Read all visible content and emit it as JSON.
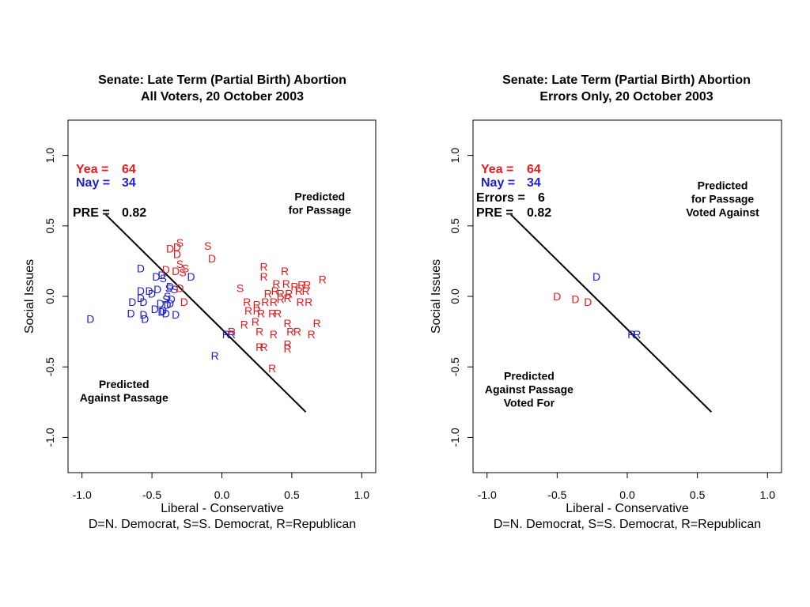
{
  "chart_data": [
    {
      "type": "scatter",
      "title": "Senate: Late Term (Partial Birth) Abortion",
      "subtitle": "All Voters, 20 October 2003",
      "xlabel": "Liberal - Conservative",
      "xlabel2": "D=N. Democrat, S=S. Democrat, R=Republican",
      "ylabel": "Social Issues",
      "xlim": [
        -1.1,
        1.1
      ],
      "ylim": [
        -1.25,
        1.25
      ],
      "xticks": [
        -1.0,
        -0.5,
        0.0,
        0.5,
        1.0
      ],
      "xtick_labels": [
        "-1.0",
        "-0.5",
        "0.0",
        "0.5",
        "1.0"
      ],
      "yticks": [
        -1.0,
        -0.5,
        0.0,
        0.5,
        1.0
      ],
      "ytick_labels": [
        "-1.0",
        "-0.5",
        "0.0",
        "0.5",
        "1.0"
      ],
      "legend": [
        {
          "label": "Yea =",
          "value": "64",
          "color": "#e41a1c"
        },
        {
          "label": "Nay =",
          "value": "34",
          "color": "#1f1fcf"
        },
        {
          "label": "PRE =",
          "value": "0.82",
          "color": "#000000"
        }
      ],
      "annotations": [
        {
          "lines": [
            "Predicted",
            "for Passage"
          ],
          "x": 0.7,
          "y": 0.68
        },
        {
          "lines": [
            "Predicted",
            "Against Passage"
          ],
          "x": -0.7,
          "y": -0.65
        }
      ],
      "cutting_line": [
        [
          -0.83,
          0.58
        ],
        [
          0.6,
          -0.82
        ]
      ],
      "points": [
        {
          "t": "D",
          "x": -0.94,
          "y": -0.16,
          "c": "#1f1fcf"
        },
        {
          "t": "D",
          "x": -0.58,
          "y": 0.2,
          "c": "#1f1fcf"
        },
        {
          "t": "D",
          "x": -0.58,
          "y": 0.04,
          "c": "#1f1fcf"
        },
        {
          "t": "D",
          "x": -0.52,
          "y": 0.04,
          "c": "#1f1fcf"
        },
        {
          "t": "D",
          "x": -0.64,
          "y": -0.04,
          "c": "#1f1fcf"
        },
        {
          "t": "D",
          "x": -0.56,
          "y": -0.04,
          "c": "#1f1fcf"
        },
        {
          "t": "D",
          "x": -0.5,
          "y": 0.02,
          "c": "#1f1fcf"
        },
        {
          "t": "D",
          "x": -0.46,
          "y": 0.05,
          "c": "#1f1fcf"
        },
        {
          "t": "D",
          "x": -0.58,
          "y": -0.01,
          "c": "#1f1fcf"
        },
        {
          "t": "D",
          "x": -0.65,
          "y": -0.12,
          "c": "#1f1fcf"
        },
        {
          "t": "D",
          "x": -0.56,
          "y": -0.13,
          "c": "#1f1fcf"
        },
        {
          "t": "D",
          "x": -0.55,
          "y": -0.16,
          "c": "#1f1fcf"
        },
        {
          "t": "D",
          "x": -0.48,
          "y": -0.09,
          "c": "#1f1fcf"
        },
        {
          "t": "D",
          "x": -0.44,
          "y": -0.05,
          "c": "#1f1fcf"
        },
        {
          "t": "D",
          "x": -0.42,
          "y": -0.1,
          "c": "#1f1fcf"
        },
        {
          "t": "D",
          "x": -0.39,
          "y": -0.06,
          "c": "#1f1fcf"
        },
        {
          "t": "D",
          "x": -0.37,
          "y": -0.05,
          "c": "#1f1fcf"
        },
        {
          "t": "D",
          "x": -0.33,
          "y": -0.13,
          "c": "#1f1fcf"
        },
        {
          "t": "D",
          "x": -0.4,
          "y": -0.12,
          "c": "#1f1fcf"
        },
        {
          "t": "D",
          "x": -0.47,
          "y": 0.14,
          "c": "#1f1fcf"
        },
        {
          "t": "D",
          "x": -0.43,
          "y": 0.15,
          "c": "#1f1fcf"
        },
        {
          "t": "D",
          "x": -0.37,
          "y": 0.07,
          "c": "#1f1fcf"
        },
        {
          "t": "D",
          "x": -0.22,
          "y": 0.14,
          "c": "#1f1fcf"
        },
        {
          "t": "D",
          "x": -0.43,
          "y": -0.11,
          "c": "#1f1fcf"
        },
        {
          "t": "D",
          "x": -0.36,
          "y": -0.02,
          "c": "#1f1fcf"
        },
        {
          "t": "S",
          "x": -0.38,
          "y": 0.06,
          "c": "#1f1fcf"
        },
        {
          "t": "S",
          "x": -0.34,
          "y": 0.05,
          "c": "#1f1fcf"
        },
        {
          "t": "S",
          "x": -0.39,
          "y": 0.0,
          "c": "#1f1fcf"
        },
        {
          "t": "S",
          "x": -0.4,
          "y": -0.02,
          "c": "#1f1fcf"
        },
        {
          "t": "S",
          "x": -0.42,
          "y": 0.13,
          "c": "#1f1fcf"
        },
        {
          "t": "R",
          "x": -0.05,
          "y": -0.42,
          "c": "#1f1fcf"
        },
        {
          "t": "R",
          "x": 0.03,
          "y": -0.27,
          "c": "#1f1fcf"
        },
        {
          "t": "R",
          "x": 0.07,
          "y": -0.27,
          "c": "#1f1fcf"
        },
        {
          "t": "D",
          "x": -0.37,
          "y": 0.34,
          "c": "#e41a1c"
        },
        {
          "t": "S",
          "x": -0.3,
          "y": 0.38,
          "c": "#e41a1c"
        },
        {
          "t": "D",
          "x": -0.32,
          "y": 0.35,
          "c": "#e41a1c"
        },
        {
          "t": "D",
          "x": -0.32,
          "y": 0.3,
          "c": "#e41a1c"
        },
        {
          "t": "S",
          "x": -0.3,
          "y": 0.23,
          "c": "#e41a1c"
        },
        {
          "t": "S",
          "x": -0.26,
          "y": 0.2,
          "c": "#e41a1c"
        },
        {
          "t": "D",
          "x": -0.4,
          "y": 0.19,
          "c": "#e41a1c"
        },
        {
          "t": "D",
          "x": -0.33,
          "y": 0.18,
          "c": "#e41a1c"
        },
        {
          "t": "S",
          "x": -0.28,
          "y": 0.17,
          "c": "#e41a1c"
        },
        {
          "t": "D",
          "x": -0.3,
          "y": 0.06,
          "c": "#e41a1c"
        },
        {
          "t": "D",
          "x": -0.27,
          "y": -0.04,
          "c": "#e41a1c"
        },
        {
          "t": "S",
          "x": -0.1,
          "y": 0.36,
          "c": "#e41a1c"
        },
        {
          "t": "D",
          "x": -0.07,
          "y": 0.27,
          "c": "#e41a1c"
        },
        {
          "t": "S",
          "x": 0.13,
          "y": 0.06,
          "c": "#e41a1c"
        },
        {
          "t": "R",
          "x": 0.3,
          "y": 0.21,
          "c": "#e41a1c"
        },
        {
          "t": "R",
          "x": 0.3,
          "y": 0.14,
          "c": "#e41a1c"
        },
        {
          "t": "R",
          "x": 0.45,
          "y": 0.18,
          "c": "#e41a1c"
        },
        {
          "t": "R",
          "x": 0.39,
          "y": 0.09,
          "c": "#e41a1c"
        },
        {
          "t": "R",
          "x": 0.46,
          "y": 0.09,
          "c": "#e41a1c"
        },
        {
          "t": "R",
          "x": 0.52,
          "y": 0.07,
          "c": "#e41a1c"
        },
        {
          "t": "R",
          "x": 0.57,
          "y": 0.08,
          "c": "#e41a1c"
        },
        {
          "t": "R",
          "x": 0.61,
          "y": 0.08,
          "c": "#e41a1c"
        },
        {
          "t": "R",
          "x": 0.72,
          "y": 0.12,
          "c": "#e41a1c"
        },
        {
          "t": "R",
          "x": 0.33,
          "y": 0.02,
          "c": "#e41a1c"
        },
        {
          "t": "R",
          "x": 0.38,
          "y": 0.04,
          "c": "#e41a1c"
        },
        {
          "t": "R",
          "x": 0.42,
          "y": 0.02,
          "c": "#e41a1c"
        },
        {
          "t": "R",
          "x": 0.48,
          "y": 0.02,
          "c": "#e41a1c"
        },
        {
          "t": "R",
          "x": 0.55,
          "y": 0.04,
          "c": "#e41a1c"
        },
        {
          "t": "R",
          "x": 0.6,
          "y": 0.04,
          "c": "#e41a1c"
        },
        {
          "t": "R",
          "x": 0.18,
          "y": -0.04,
          "c": "#e41a1c"
        },
        {
          "t": "R",
          "x": 0.25,
          "y": -0.06,
          "c": "#e41a1c"
        },
        {
          "t": "R",
          "x": 0.31,
          "y": -0.04,
          "c": "#e41a1c"
        },
        {
          "t": "R",
          "x": 0.37,
          "y": -0.04,
          "c": "#e41a1c"
        },
        {
          "t": "R",
          "x": 0.42,
          "y": -0.02,
          "c": "#e41a1c"
        },
        {
          "t": "R",
          "x": 0.47,
          "y": -0.01,
          "c": "#e41a1c"
        },
        {
          "t": "R",
          "x": 0.56,
          "y": -0.04,
          "c": "#e41a1c"
        },
        {
          "t": "R",
          "x": 0.62,
          "y": -0.04,
          "c": "#e41a1c"
        },
        {
          "t": "R",
          "x": 0.19,
          "y": -0.1,
          "c": "#e41a1c"
        },
        {
          "t": "R",
          "x": 0.25,
          "y": -0.1,
          "c": "#e41a1c"
        },
        {
          "t": "R",
          "x": 0.28,
          "y": -0.12,
          "c": "#e41a1c"
        },
        {
          "t": "R",
          "x": 0.36,
          "y": -0.12,
          "c": "#e41a1c"
        },
        {
          "t": "R",
          "x": 0.4,
          "y": -0.12,
          "c": "#e41a1c"
        },
        {
          "t": "R",
          "x": 0.16,
          "y": -0.2,
          "c": "#e41a1c"
        },
        {
          "t": "R",
          "x": 0.24,
          "y": -0.18,
          "c": "#e41a1c"
        },
        {
          "t": "R",
          "x": 0.47,
          "y": -0.19,
          "c": "#e41a1c"
        },
        {
          "t": "R",
          "x": 0.68,
          "y": -0.19,
          "c": "#e41a1c"
        },
        {
          "t": "R",
          "x": 0.07,
          "y": -0.25,
          "c": "#e41a1c"
        },
        {
          "t": "R",
          "x": 0.27,
          "y": -0.25,
          "c": "#e41a1c"
        },
        {
          "t": "R",
          "x": 0.37,
          "y": -0.27,
          "c": "#e41a1c"
        },
        {
          "t": "R",
          "x": 0.49,
          "y": -0.25,
          "c": "#e41a1c"
        },
        {
          "t": "R",
          "x": 0.54,
          "y": -0.25,
          "c": "#e41a1c"
        },
        {
          "t": "R",
          "x": 0.64,
          "y": -0.27,
          "c": "#e41a1c"
        },
        {
          "t": "R",
          "x": 0.27,
          "y": -0.36,
          "c": "#e41a1c"
        },
        {
          "t": "R",
          "x": 0.3,
          "y": -0.36,
          "c": "#e41a1c"
        },
        {
          "t": "R",
          "x": 0.47,
          "y": -0.34,
          "c": "#e41a1c"
        },
        {
          "t": "R",
          "x": 0.47,
          "y": -0.37,
          "c": "#e41a1c"
        },
        {
          "t": "R",
          "x": 0.36,
          "y": -0.51,
          "c": "#e41a1c"
        }
      ]
    },
    {
      "type": "scatter",
      "title": "Senate: Late Term (Partial Birth) Abortion",
      "subtitle": "Errors Only, 20 October 2003",
      "xlabel": "Liberal - Conservative",
      "xlabel2": "D=N. Democrat, S=S. Democrat, R=Republican",
      "ylabel": "Social Issues",
      "xlim": [
        -1.1,
        1.1
      ],
      "ylim": [
        -1.25,
        1.25
      ],
      "xticks": [
        -1.0,
        -0.5,
        0.0,
        0.5,
        1.0
      ],
      "xtick_labels": [
        "-1.0",
        "-0.5",
        "0.0",
        "0.5",
        "1.0"
      ],
      "yticks": [
        -1.0,
        -0.5,
        0.0,
        0.5,
        1.0
      ],
      "ytick_labels": [
        "-1.0",
        "-0.5",
        "0.0",
        "0.5",
        "1.0"
      ],
      "legend": [
        {
          "label": "Yea =",
          "value": "64",
          "color": "#e41a1c"
        },
        {
          "label": "Nay =",
          "value": "34",
          "color": "#1f1fcf"
        },
        {
          "label": "Errors =",
          "value": "6",
          "color": "#000000"
        },
        {
          "label": "PRE =",
          "value": "0.82",
          "color": "#000000"
        }
      ],
      "annotations": [
        {
          "lines": [
            "Predicted",
            "for Passage",
            "Voted Against"
          ],
          "x": 0.68,
          "y": 0.76
        },
        {
          "lines": [
            "Predicted",
            "Against Passage",
            "Voted For"
          ],
          "x": -0.7,
          "y": -0.59
        }
      ],
      "cutting_line": [
        [
          -0.83,
          0.58
        ],
        [
          0.6,
          -0.82
        ]
      ],
      "points": [
        {
          "t": "D",
          "x": -0.5,
          "y": 0.0,
          "c": "#e41a1c"
        },
        {
          "t": "D",
          "x": -0.37,
          "y": -0.02,
          "c": "#e41a1c"
        },
        {
          "t": "D",
          "x": -0.28,
          "y": -0.04,
          "c": "#e41a1c"
        },
        {
          "t": "D",
          "x": -0.22,
          "y": 0.14,
          "c": "#1f1fcf"
        },
        {
          "t": "R",
          "x": 0.03,
          "y": -0.27,
          "c": "#1f1fcf"
        },
        {
          "t": "R",
          "x": 0.07,
          "y": -0.27,
          "c": "#1f1fcf"
        }
      ]
    }
  ]
}
